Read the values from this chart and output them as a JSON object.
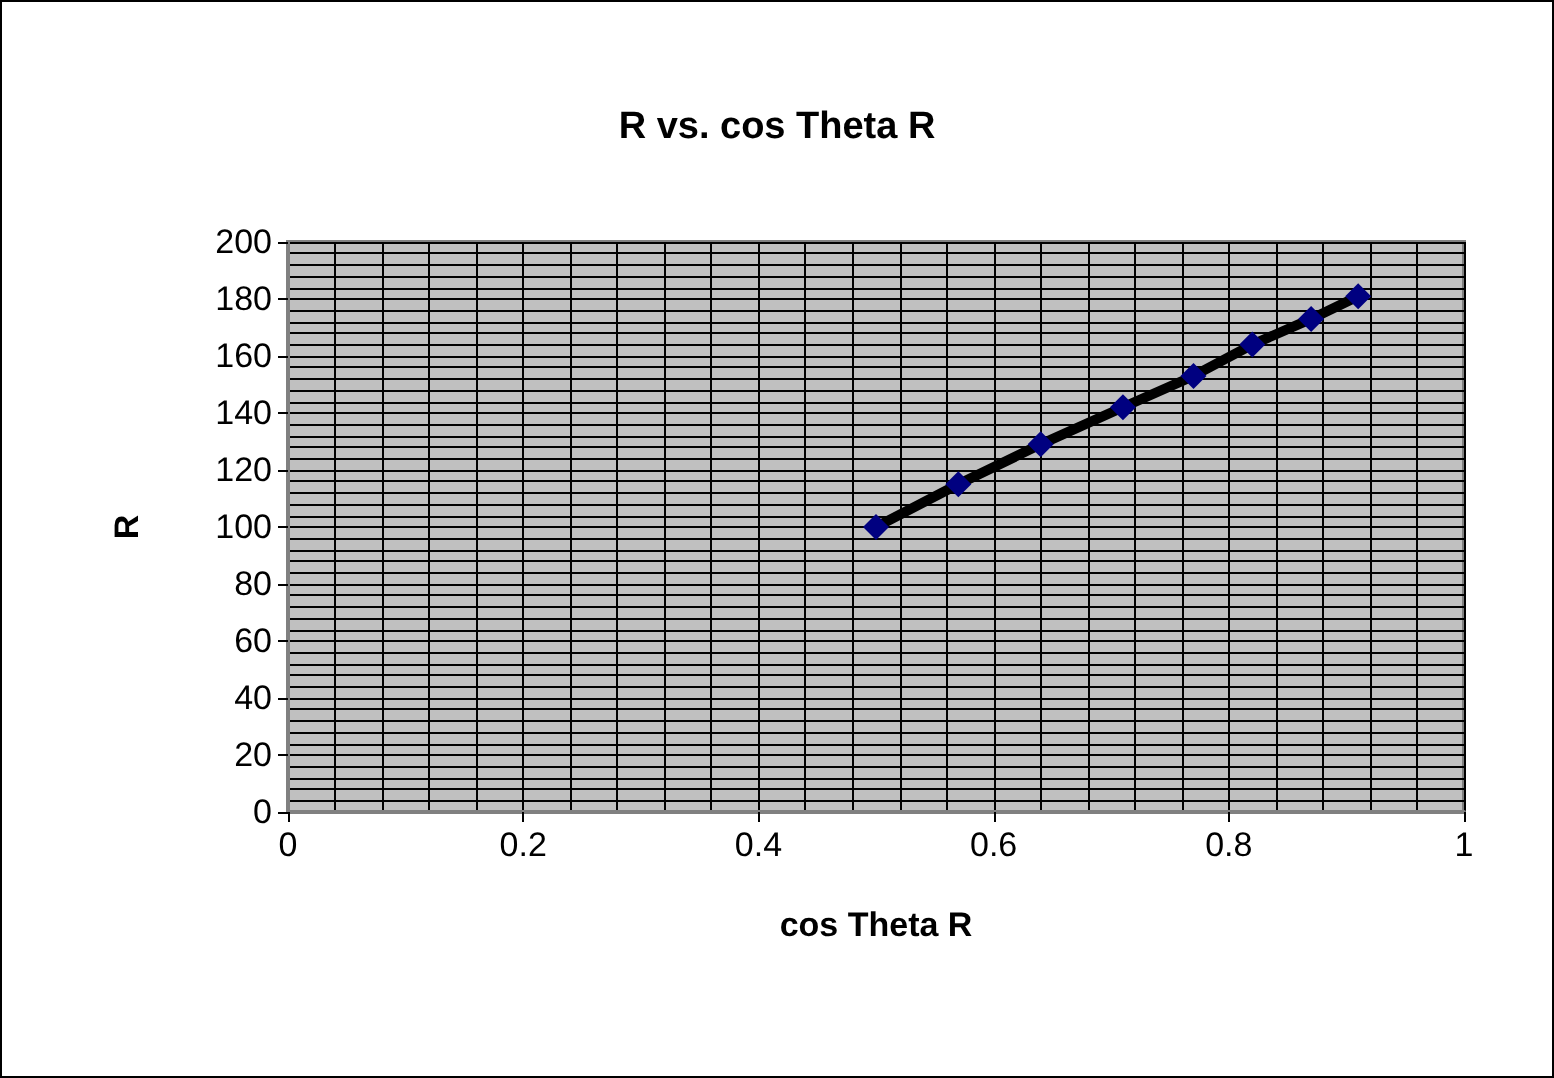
{
  "chart_data": {
    "type": "line",
    "title": "R vs. cos Theta R",
    "xlabel": "cos Theta R",
    "ylabel": "R",
    "x": [
      0.5,
      0.57,
      0.64,
      0.71,
      0.77,
      0.82,
      0.87,
      0.91
    ],
    "series": [
      {
        "color": "#000080",
        "values": [
          100,
          115,
          129,
          142,
          153,
          164,
          173,
          181
        ]
      }
    ],
    "xlim": [
      0,
      1
    ],
    "xticks": [
      0,
      0.2,
      0.4,
      0.6,
      0.8,
      1
    ],
    "ylim": [
      0,
      200
    ],
    "yticks": [
      0,
      20,
      40,
      60,
      80,
      100,
      120,
      140,
      160,
      180,
      200
    ],
    "grid": true,
    "marker": "diamond",
    "line_style": "solid"
  }
}
